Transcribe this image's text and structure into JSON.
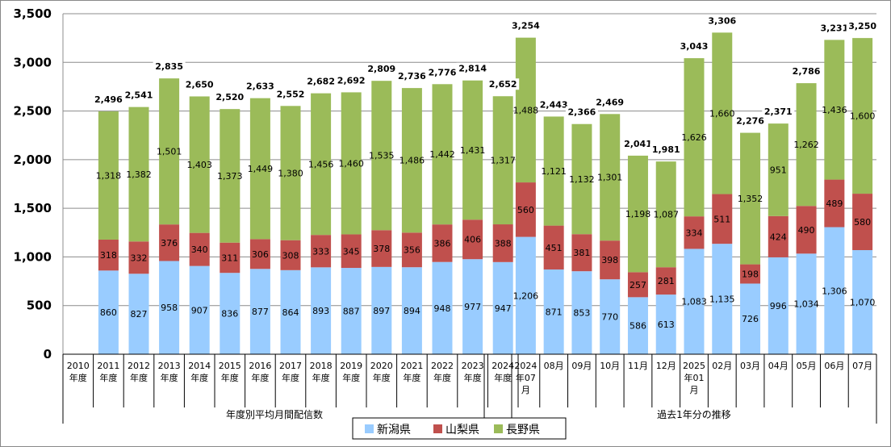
{
  "chart_data": {
    "type": "bar",
    "stacked": true,
    "ylim": [
      0,
      3500
    ],
    "yticks": [
      0,
      500,
      1000,
      1500,
      2000,
      2500,
      3000,
      3500
    ],
    "ytick_labels": [
      "0",
      "500",
      "1,000",
      "1,500",
      "2,000",
      "2,500",
      "3,000",
      "3,500"
    ],
    "grid": true,
    "legend_position": "bottom",
    "categories": [
      [
        "2010",
        "年度"
      ],
      [
        "2011",
        "年度"
      ],
      [
        "2012",
        "年度"
      ],
      [
        "2013",
        "年度"
      ],
      [
        "2014",
        "年度"
      ],
      [
        "2015",
        "年度"
      ],
      [
        "2016",
        "年度"
      ],
      [
        "2017",
        "年度"
      ],
      [
        "2018",
        "年度"
      ],
      [
        "2019",
        "年度"
      ],
      [
        "2020",
        "年度"
      ],
      [
        "2021",
        "年度"
      ],
      [
        "2022",
        "年度"
      ],
      [
        "2023",
        "年度"
      ],
      [
        "2024",
        "年度"
      ],
      [],
      [
        "2024",
        "年07",
        "月"
      ],
      [
        "08月"
      ],
      [
        "09月"
      ],
      [
        "10月"
      ],
      [
        "11月"
      ],
      [
        "12月"
      ],
      [
        "2025",
        "年01",
        "月"
      ],
      [
        "02月"
      ],
      [
        "03月"
      ],
      [
        "04月"
      ],
      [
        "05月"
      ],
      [
        "06月"
      ],
      [
        "07月"
      ]
    ],
    "series": [
      {
        "name": "新潟県",
        "color": "#99CCFF",
        "values": [
          null,
          860,
          827,
          958,
          907,
          836,
          877,
          864,
          893,
          887,
          897,
          894,
          948,
          977,
          947,
          null,
          1206,
          871,
          853,
          770,
          586,
          613,
          1083,
          1135,
          726,
          996,
          1034,
          1306,
          1070
        ]
      },
      {
        "name": "山梨県",
        "color": "#C0504D",
        "values": [
          null,
          318,
          332,
          376,
          340,
          311,
          306,
          308,
          333,
          345,
          378,
          356,
          386,
          406,
          388,
          null,
          560,
          451,
          381,
          398,
          257,
          281,
          334,
          511,
          198,
          424,
          490,
          489,
          580
        ]
      },
      {
        "name": "長野県",
        "color": "#9BBB59",
        "values": [
          null,
          1318,
          1382,
          1501,
          1403,
          1373,
          1449,
          1380,
          1456,
          1460,
          1535,
          1486,
          1442,
          1431,
          1317,
          null,
          1488,
          1121,
          1132,
          1301,
          1198,
          1087,
          1626,
          1660,
          1352,
          951,
          1262,
          1436,
          1600
        ]
      }
    ],
    "totals": [
      null,
      2496,
      2541,
      2835,
      2650,
      2520,
      2633,
      2552,
      2682,
      2692,
      2809,
      2736,
      2776,
      2814,
      2652,
      null,
      3254,
      2443,
      2366,
      2469,
      2041,
      1981,
      3043,
      3306,
      2276,
      2371,
      2786,
      3231,
      3250
    ],
    "group_labels": [
      "年度別平均月間配信数",
      "過去1年分の推移"
    ]
  }
}
